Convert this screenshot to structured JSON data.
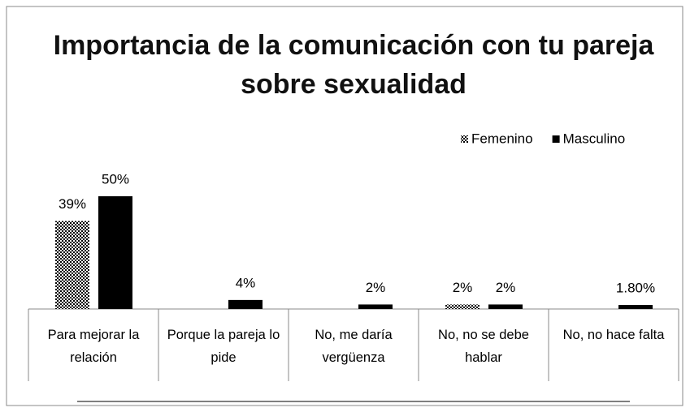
{
  "chart_data": {
    "type": "bar",
    "title": "Importancia  de  la comunicación con tu pareja sobre sexualidad",
    "categories": [
      "Para mejorar la relación",
      "Porque la pareja lo pide",
      "No, me daría vergüenza",
      "No, no se debe hablar",
      "No, no hace falta"
    ],
    "series": [
      {
        "name": "Femenino",
        "color": "#000000",
        "pattern": "checker",
        "values": [
          39,
          null,
          null,
          2,
          null
        ],
        "value_labels": [
          "39%",
          null,
          null,
          "2%",
          null
        ]
      },
      {
        "name": "Masculino",
        "color": "#000000",
        "values": [
          50,
          4,
          2,
          2,
          1.8
        ],
        "value_labels": [
          "50%",
          "4%",
          "2%",
          "2%",
          "1.80%"
        ]
      }
    ],
    "ylim": [
      0,
      55
    ],
    "legend": "top-right",
    "grid": false
  }
}
